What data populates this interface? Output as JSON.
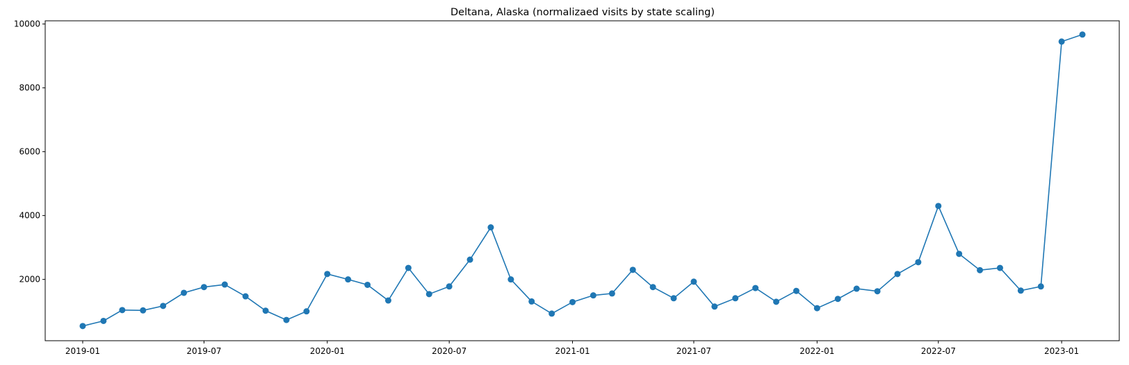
{
  "chart_data": {
    "type": "line",
    "title": "Deltana, Alaska (normalizaed visits by state scaling)",
    "xlabel": "",
    "ylabel": "",
    "color": "#1f77b4",
    "marker": "circle",
    "grid": false,
    "legend": "none",
    "xlim": [
      "2018-11-06",
      "2023-03-28"
    ],
    "ylim": [
      80,
      10100
    ],
    "x_ticks": [
      "2019-01",
      "2019-07",
      "2020-01",
      "2020-07",
      "2021-01",
      "2021-07",
      "2022-01",
      "2022-07",
      "2023-01"
    ],
    "y_ticks": [
      2000,
      4000,
      6000,
      8000,
      10000
    ],
    "series": [
      {
        "x": [
          "2019-01",
          "2019-02",
          "2019-03",
          "2019-04",
          "2019-05",
          "2019-06",
          "2019-07",
          "2019-08",
          "2019-09",
          "2019-10",
          "2019-11",
          "2019-12",
          "2020-01",
          "2020-02",
          "2020-03",
          "2020-04",
          "2020-05",
          "2020-06",
          "2020-07",
          "2020-08",
          "2020-09",
          "2020-10",
          "2020-11",
          "2020-12",
          "2021-01",
          "2021-02",
          "2021-03",
          "2021-04",
          "2021-05",
          "2021-06",
          "2021-07",
          "2021-08",
          "2021-09",
          "2021-10",
          "2021-11",
          "2021-12",
          "2022-01",
          "2022-02",
          "2022-03",
          "2022-04",
          "2022-05",
          "2022-06",
          "2022-07",
          "2022-08",
          "2022-09",
          "2022-10",
          "2022-11",
          "2022-12",
          "2023-01",
          "2023-02"
        ],
        "values": [
          540,
          700,
          1040,
          1030,
          1170,
          1580,
          1760,
          1840,
          1470,
          1020,
          730,
          1000,
          2170,
          2000,
          1830,
          1340,
          2360,
          1540,
          1780,
          2620,
          3630,
          2000,
          1310,
          930,
          1290,
          1500,
          1560,
          2300,
          1760,
          1410,
          1930,
          1150,
          1410,
          1730,
          1300,
          1640,
          1100,
          1390,
          1710,
          1630,
          2170,
          2540,
          4300,
          2800,
          2290,
          2360,
          1650,
          1780,
          9450,
          9670
        ]
      }
    ]
  }
}
